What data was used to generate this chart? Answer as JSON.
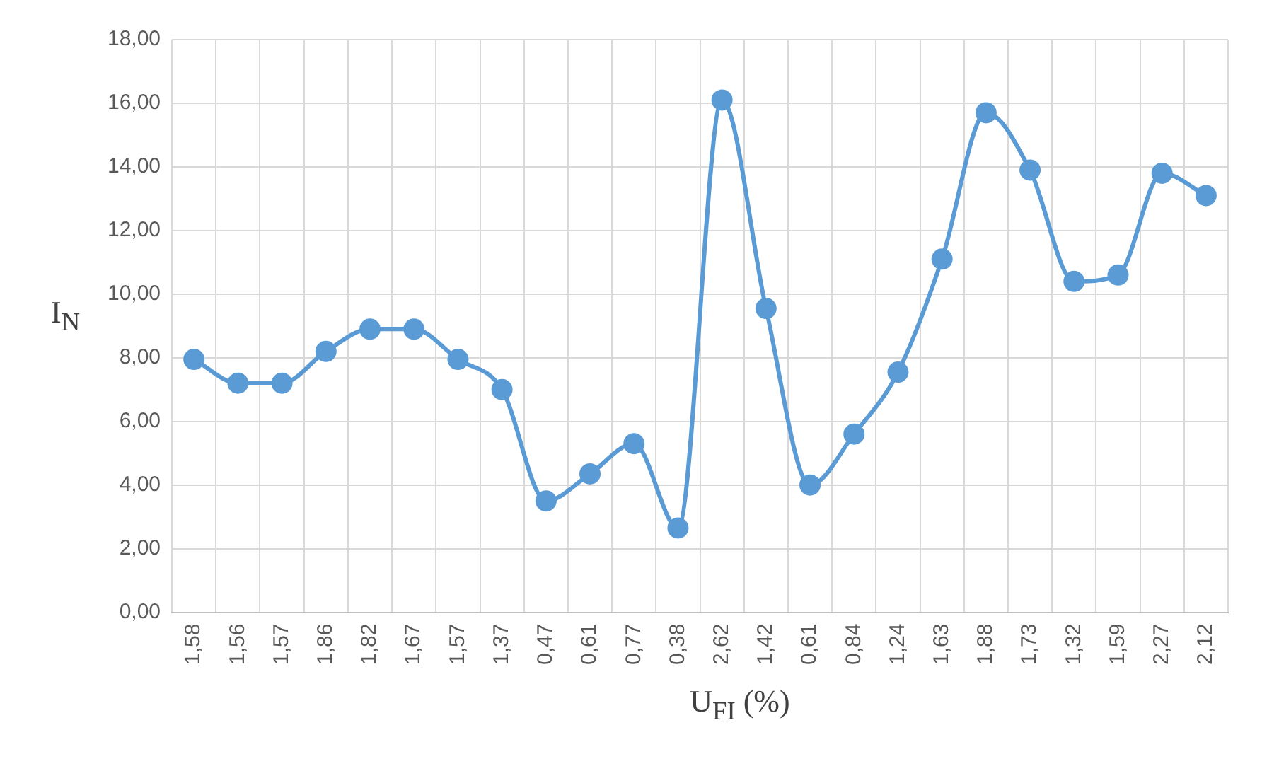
{
  "chart_data": {
    "type": "line",
    "xlabel": "U$_{FI}$ (%)",
    "ylabel": "I$_{N}$",
    "categories": [
      "1,58",
      "1,56",
      "1,57",
      "1,86",
      "1,82",
      "1,67",
      "1,57",
      "1,37",
      "0,47",
      "0,61",
      "0,77",
      "0,38",
      "2,62",
      "1,42",
      "0,61",
      "0,84",
      "1,24",
      "1,63",
      "1,88",
      "1,73",
      "1,32",
      "1,59",
      "2,27",
      "2,12"
    ],
    "series": [
      {
        "color": "#5b9bd5",
        "values": [
          7.95,
          7.2,
          7.2,
          8.2,
          8.9,
          8.9,
          7.95,
          7.0,
          3.5,
          4.35,
          5.3,
          2.65,
          16.1,
          9.55,
          4.0,
          5.6,
          7.55,
          11.1,
          15.7,
          13.9,
          10.4,
          10.6,
          13.8,
          13.1
        ]
      }
    ],
    "ylim": [
      0,
      18
    ],
    "yticks": [
      {
        "value": 0,
        "label": "0,00"
      },
      {
        "value": 2,
        "label": "2,00"
      },
      {
        "value": 4,
        "label": "4,00"
      },
      {
        "value": 6,
        "label": "6,00"
      },
      {
        "value": 8,
        "label": "8,00"
      },
      {
        "value": 10,
        "label": "10,00"
      },
      {
        "value": 12,
        "label": "12,00"
      },
      {
        "value": 14,
        "label": "14,00"
      },
      {
        "value": 16,
        "label": "16,00"
      },
      {
        "value": 18,
        "label": "18,00"
      }
    ],
    "grid": true,
    "marker": "circle",
    "line_style": "solid",
    "legend": false
  }
}
